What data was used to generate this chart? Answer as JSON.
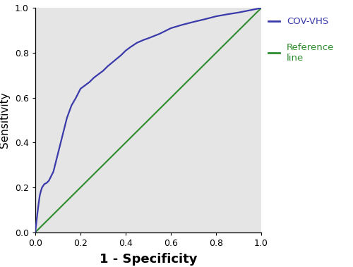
{
  "title": "",
  "xlabel": "1 - Specificity",
  "ylabel": "Sensitivity",
  "xlim": [
    0.0,
    1.0
  ],
  "ylim": [
    0.0,
    1.0
  ],
  "xticks": [
    0.0,
    0.2,
    0.4,
    0.6,
    0.8,
    1.0
  ],
  "yticks": [
    0.0,
    0.2,
    0.4,
    0.6,
    0.8,
    1.0
  ],
  "roc_color": "#3a3aaa",
  "ref_color": "#2e8b2e",
  "background_color": "#e5e5e5",
  "legend_cov_label": "COV-VHS",
  "legend_ref_label": "Reference\nline",
  "legend_color_cov": "#3a3aaa",
  "legend_color_ref": "#2e8b2e",
  "roc_curve_x": [
    0.0,
    0.003,
    0.006,
    0.01,
    0.015,
    0.02,
    0.025,
    0.03,
    0.04,
    0.05,
    0.06,
    0.07,
    0.08,
    0.09,
    0.1,
    0.12,
    0.14,
    0.16,
    0.18,
    0.2,
    0.22,
    0.24,
    0.26,
    0.28,
    0.3,
    0.32,
    0.35,
    0.38,
    0.4,
    0.42,
    0.45,
    0.48,
    0.5,
    0.55,
    0.6,
    0.65,
    0.7,
    0.75,
    0.8,
    0.85,
    0.9,
    0.95,
    1.0
  ],
  "roc_curve_y": [
    0.0,
    0.03,
    0.055,
    0.09,
    0.13,
    0.165,
    0.185,
    0.2,
    0.215,
    0.22,
    0.23,
    0.25,
    0.27,
    0.31,
    0.35,
    0.43,
    0.51,
    0.565,
    0.6,
    0.64,
    0.655,
    0.67,
    0.69,
    0.705,
    0.72,
    0.74,
    0.765,
    0.79,
    0.81,
    0.825,
    0.845,
    0.858,
    0.865,
    0.885,
    0.91,
    0.925,
    0.938,
    0.95,
    0.963,
    0.972,
    0.98,
    0.99,
    1.0
  ],
  "figsize": [
    5.0,
    3.79
  ],
  "dpi": 100
}
